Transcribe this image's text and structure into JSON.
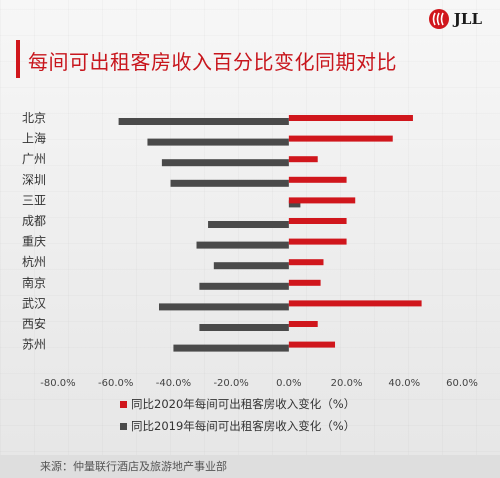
{
  "brand": {
    "name": "JLL",
    "color": "#d0161c"
  },
  "title": "每间可出租客房收入百分比变化同期对比",
  "source": "来源：仲量联行酒店及旅游地产事业部",
  "chart_data": {
    "type": "bar",
    "orientation": "horizontal",
    "categories": [
      "北京",
      "上海",
      "广州",
      "深圳",
      "三亚",
      "成都",
      "重庆",
      "杭州",
      "南京",
      "武汉",
      "西安",
      "苏州"
    ],
    "series": [
      {
        "name": "同比2020年每间可出租客房收入变化（%）",
        "color": "#d0161c",
        "values": [
          43,
          36,
          10,
          20,
          23,
          20,
          20,
          12,
          11,
          46,
          10,
          16
        ]
      },
      {
        "name": "同比2019年每间可出租客房收入变化（%）",
        "color": "#4a4a4a",
        "values": [
          -59,
          -49,
          -44,
          -41,
          4,
          -28,
          -32,
          -26,
          -31,
          -45,
          -31,
          -40
        ]
      }
    ],
    "xlim": [
      -80,
      60
    ],
    "xticks": [
      "-80.0%",
      "-60.0%",
      "-40.0%",
      "-20.0%",
      "0.0%",
      "20.0%",
      "40.0%",
      "60.0%"
    ],
    "xtick_values": [
      -80,
      -60,
      -40,
      -20,
      0,
      20,
      40,
      60
    ],
    "legend_position": "bottom",
    "grid": false
  }
}
